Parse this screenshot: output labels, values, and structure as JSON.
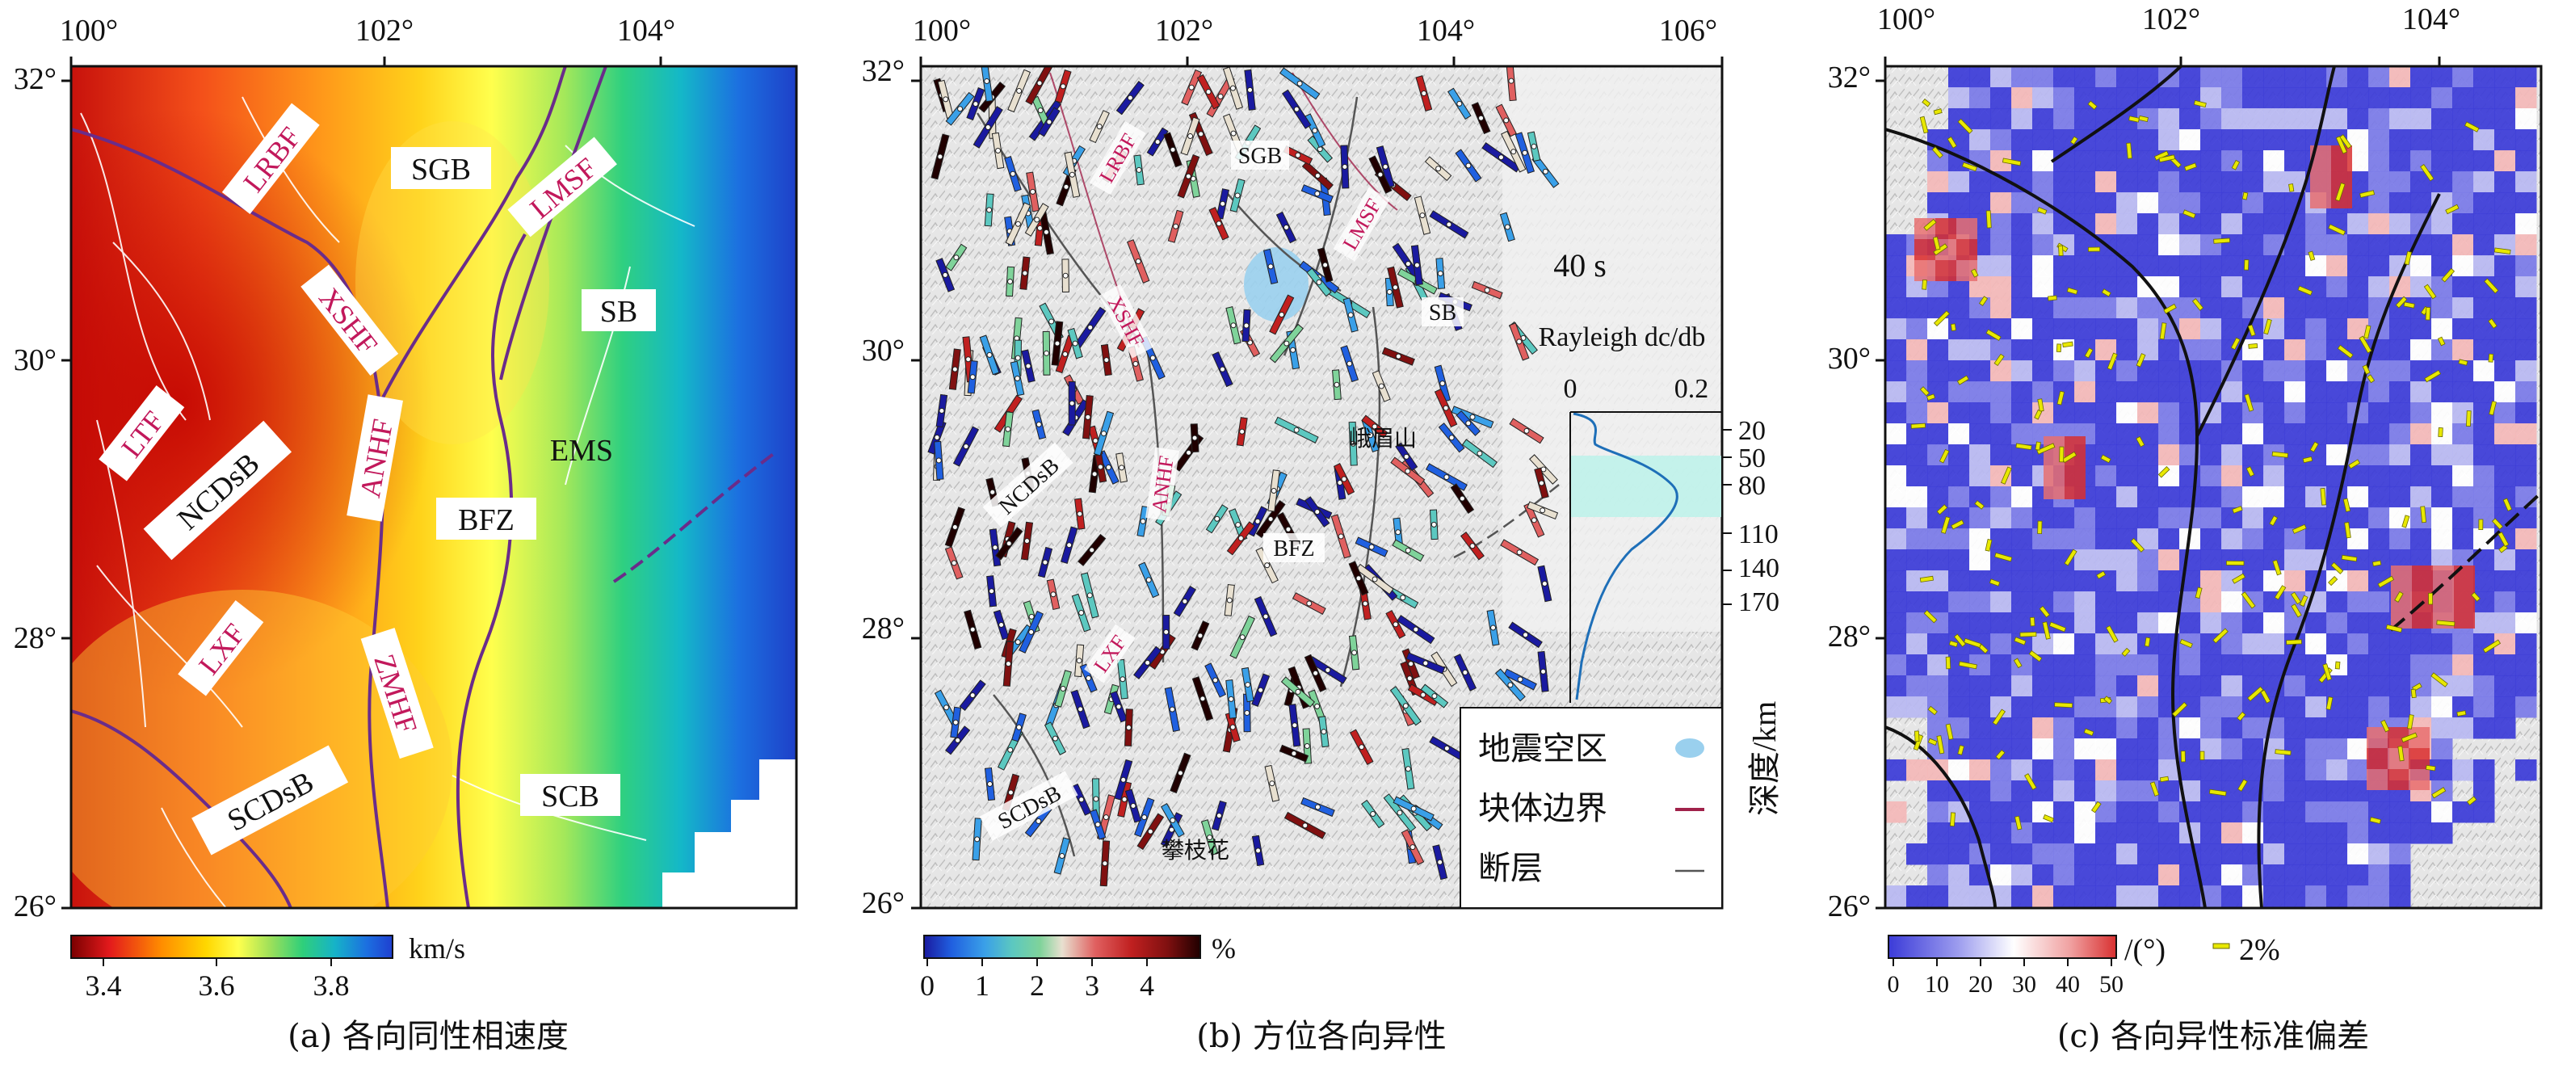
{
  "panels": {
    "a": {
      "caption": "(a) 各向同性相速度",
      "lon_ticks": [
        "100°",
        "102°",
        "104°"
      ],
      "lat_ticks": [
        "32°",
        "30°",
        "28°",
        "26°"
      ],
      "fault_labels": [
        "LRBF",
        "XSHF",
        "LMSF",
        "LTF",
        "ANHF",
        "LXF",
        "ZMHF"
      ],
      "block_labels": [
        "SGB",
        "SB",
        "NCDsB",
        "BFZ",
        "EMS",
        "SCDsB",
        "SCB"
      ],
      "colorbar": {
        "unit": "km/s",
        "ticks": [
          "3.4",
          "3.6",
          "3.8"
        ],
        "colors": [
          "#7a0000",
          "#e31a1c",
          "#ff8c00",
          "#ffd700",
          "#ffff4d",
          "#9de05a",
          "#2fcf7a",
          "#16b3c8",
          "#1c6fe0",
          "#1f3fd0"
        ]
      }
    },
    "b": {
      "caption": "(b) 方位各向异性",
      "lon_ticks": [
        "100°",
        "102°",
        "104°",
        "106°"
      ],
      "lat_ticks": [
        "32°",
        "30°",
        "28°",
        "26°"
      ],
      "fault_labels": [
        "LRBF",
        "LMSF",
        "XSHF",
        "ANHF",
        "LXF"
      ],
      "block_labels": [
        "SGB",
        "SB",
        "NCDsB",
        "BFZ",
        "SCDsB"
      ],
      "place_labels": [
        "峨眉山",
        "攀枝花"
      ],
      "period_label": "40 s",
      "sensitivity": {
        "title": "Rayleigh dc/db",
        "x_ticks": [
          "0",
          "0.2"
        ],
        "depth_ticks": [
          "20",
          "50",
          "80",
          "110",
          "140",
          "170"
        ],
        "depth_axis_label": "深度/km"
      },
      "legend": [
        {
          "label": "地震空区",
          "symbol": "gap"
        },
        {
          "label": "块体边界",
          "symbol": "boundary"
        },
        {
          "label": "断层",
          "symbol": "fault"
        }
      ],
      "colorbar": {
        "unit": "%",
        "ticks": [
          "0",
          "1",
          "2",
          "3",
          "4"
        ],
        "colors": [
          "#1a1aa0",
          "#2060e0",
          "#3aa0e8",
          "#5cc8c0",
          "#7fd39a",
          "#e8e0d0",
          "#e06060",
          "#c02020",
          "#801010",
          "#200000"
        ]
      }
    },
    "c": {
      "caption": "(c) 各向异性标准偏差",
      "lon_ticks": [
        "100°",
        "102°",
        "104°"
      ],
      "lat_ticks": [
        "32°",
        "30°",
        "28°",
        "26°"
      ],
      "colorbar": {
        "unit": "/(°)",
        "ticks": [
          "0",
          "10",
          "20",
          "30",
          "40",
          "50"
        ],
        "colors": [
          "#3b3bd8",
          "#7a7ae8",
          "#b8b8f2",
          "#ffffff",
          "#f4b8b8",
          "#e87070",
          "#d83030"
        ]
      },
      "scale_label": "2%"
    }
  }
}
